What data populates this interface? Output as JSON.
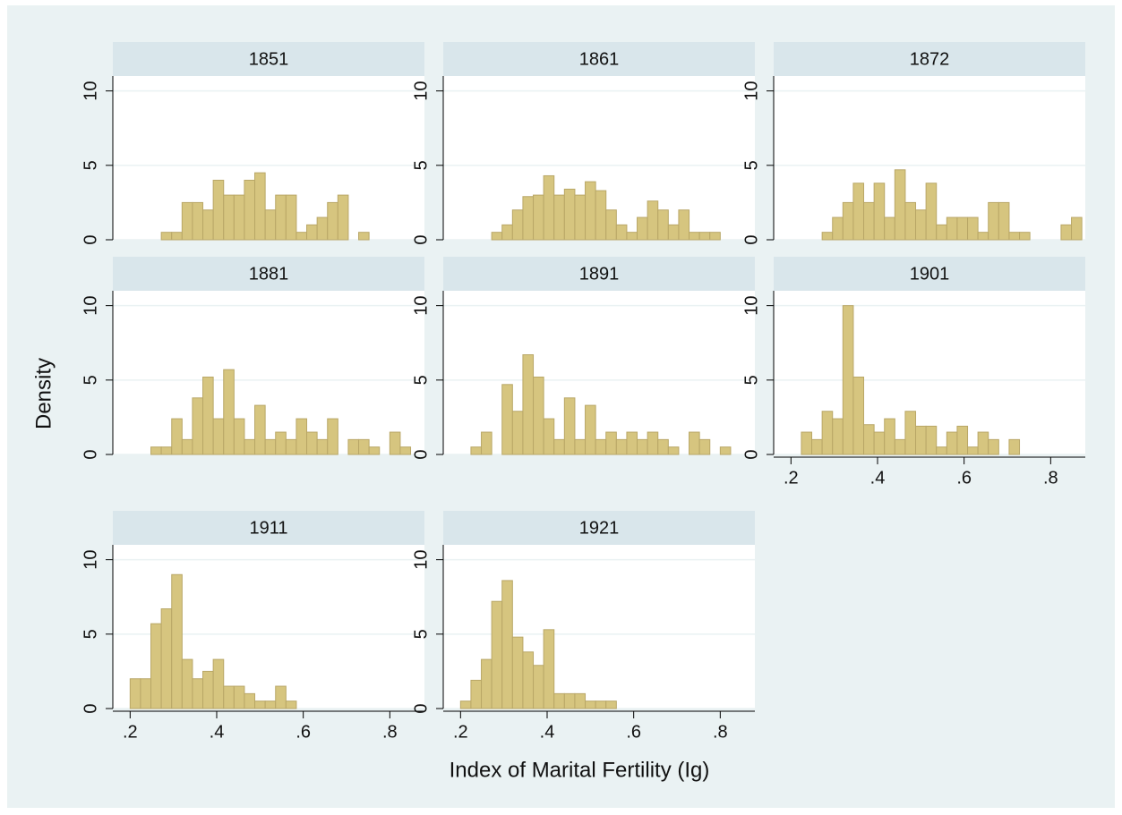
{
  "y_label": "Density",
  "x_label": "Index of Marital Fertility (Ig)",
  "chart_data": [
    {
      "type": "histogram",
      "title": "1851",
      "color": "#d6c57f",
      "xlim": [
        0.16,
        0.88
      ],
      "ylim": [
        0,
        11
      ],
      "yticks": [
        0,
        5,
        10
      ],
      "grid": true,
      "bins": [
        0.2,
        0.224,
        0.248,
        0.272,
        0.296,
        0.32,
        0.344,
        0.368,
        0.392,
        0.416,
        0.44,
        0.464,
        0.488,
        0.512,
        0.536,
        0.56,
        0.584,
        0.608,
        0.632,
        0.656,
        0.68,
        0.704,
        0.728,
        0.752,
        0.776,
        0.8,
        0.824,
        0.848,
        0.872
      ],
      "values": [
        0,
        0,
        0,
        0.5,
        0.5,
        2.5,
        2.5,
        2,
        4,
        3,
        3,
        4,
        4.5,
        2,
        3,
        3,
        0.5,
        1,
        1.5,
        2.5,
        3,
        0,
        0.5,
        0,
        0,
        0,
        0,
        0
      ]
    },
    {
      "type": "histogram",
      "title": "1861",
      "color": "#d6c57f",
      "xlim": [
        0.16,
        0.88
      ],
      "ylim": [
        0,
        11
      ],
      "yticks": [
        0,
        5,
        10
      ],
      "grid": true,
      "bins": [
        0.2,
        0.224,
        0.248,
        0.272,
        0.296,
        0.32,
        0.344,
        0.368,
        0.392,
        0.416,
        0.44,
        0.464,
        0.488,
        0.512,
        0.536,
        0.56,
        0.584,
        0.608,
        0.632,
        0.656,
        0.68,
        0.704,
        0.728,
        0.752,
        0.776,
        0.8,
        0.824,
        0.848,
        0.872
      ],
      "values": [
        0,
        0,
        0,
        0.5,
        1,
        2,
        2.9,
        3,
        4.3,
        3,
        3.4,
        3,
        3.9,
        3.3,
        2,
        1,
        0.5,
        1.5,
        2.6,
        2,
        1,
        2,
        0.5,
        0.5,
        0.5,
        0,
        0,
        0
      ]
    },
    {
      "type": "histogram",
      "title": "1872",
      "color": "#d6c57f",
      "xlim": [
        0.16,
        0.88
      ],
      "ylim": [
        0,
        11
      ],
      "yticks": [
        0,
        5,
        10
      ],
      "grid": true,
      "bins": [
        0.2,
        0.224,
        0.248,
        0.272,
        0.296,
        0.32,
        0.344,
        0.368,
        0.392,
        0.416,
        0.44,
        0.464,
        0.488,
        0.512,
        0.536,
        0.56,
        0.584,
        0.608,
        0.632,
        0.656,
        0.68,
        0.704,
        0.728,
        0.752,
        0.776,
        0.8,
        0.824,
        0.848,
        0.872
      ],
      "values": [
        0,
        0,
        0,
        0.5,
        1.5,
        2.5,
        3.8,
        2.5,
        3.8,
        1.5,
        4.7,
        2.5,
        2,
        3.8,
        1,
        1.5,
        1.5,
        1.5,
        0.5,
        2.5,
        2.5,
        0.5,
        0.5,
        0,
        0,
        0,
        1,
        1.5
      ]
    },
    {
      "type": "histogram",
      "title": "1881",
      "color": "#d6c57f",
      "xlim": [
        0.16,
        0.88
      ],
      "ylim": [
        0,
        11
      ],
      "yticks": [
        0,
        5,
        10
      ],
      "grid": true,
      "bins": [
        0.2,
        0.224,
        0.248,
        0.272,
        0.296,
        0.32,
        0.344,
        0.368,
        0.392,
        0.416,
        0.44,
        0.464,
        0.488,
        0.512,
        0.536,
        0.56,
        0.584,
        0.608,
        0.632,
        0.656,
        0.68,
        0.704,
        0.728,
        0.752,
        0.776,
        0.8,
        0.824,
        0.848,
        0.872
      ],
      "values": [
        0,
        0,
        0.5,
        0.5,
        2.4,
        1,
        3.8,
        5.2,
        2.4,
        5.7,
        2.4,
        1,
        3.3,
        1,
        1.5,
        1,
        2.4,
        1.5,
        1,
        2.4,
        0,
        1,
        1,
        0.5,
        0,
        1.5,
        0.5,
        0
      ]
    },
    {
      "type": "histogram",
      "title": "1891",
      "color": "#d6c57f",
      "xlim": [
        0.16,
        0.88
      ],
      "ylim": [
        0,
        11
      ],
      "yticks": [
        0,
        5,
        10
      ],
      "grid": true,
      "bins": [
        0.2,
        0.224,
        0.248,
        0.272,
        0.296,
        0.32,
        0.344,
        0.368,
        0.392,
        0.416,
        0.44,
        0.464,
        0.488,
        0.512,
        0.536,
        0.56,
        0.584,
        0.608,
        0.632,
        0.656,
        0.68,
        0.704,
        0.728,
        0.752,
        0.776,
        0.8,
        0.824,
        0.848,
        0.872
      ],
      "values": [
        0,
        0.5,
        1.5,
        0,
        4.7,
        2.9,
        6.7,
        5.2,
        2.4,
        1,
        3.8,
        1,
        3.3,
        1,
        1.5,
        1,
        1.5,
        1,
        1.5,
        1,
        0.5,
        0,
        1.5,
        1,
        0,
        0.5,
        0,
        0
      ]
    },
    {
      "type": "histogram",
      "title": "1901",
      "color": "#d6c57f",
      "xlim": [
        0.16,
        0.88
      ],
      "ylim": [
        0,
        11
      ],
      "yticks": [
        0,
        5,
        10
      ],
      "grid": true,
      "xticks": [
        {
          "value": 0.2,
          "label": ".2"
        },
        {
          "value": 0.4,
          "label": ".4"
        },
        {
          "value": 0.6,
          "label": ".6"
        },
        {
          "value": 0.8,
          "label": ".8"
        }
      ],
      "bins": [
        0.2,
        0.224,
        0.248,
        0.272,
        0.296,
        0.32,
        0.344,
        0.368,
        0.392,
        0.416,
        0.44,
        0.464,
        0.488,
        0.512,
        0.536,
        0.56,
        0.584,
        0.608,
        0.632,
        0.656,
        0.68,
        0.704,
        0.728,
        0.752,
        0.776,
        0.8,
        0.824,
        0.848,
        0.872
      ],
      "values": [
        0,
        1.5,
        1,
        2.9,
        2.4,
        10,
        5.2,
        2,
        1.5,
        2.4,
        1,
        2.9,
        1.9,
        1.9,
        0.5,
        1.5,
        1.9,
        0.5,
        1.5,
        1,
        0,
        1,
        0,
        0,
        0,
        0,
        0,
        0
      ]
    },
    {
      "type": "histogram",
      "title": "1911",
      "color": "#d6c57f",
      "xlim": [
        0.16,
        0.88
      ],
      "ylim": [
        0,
        11
      ],
      "yticks": [
        0,
        5,
        10
      ],
      "grid": true,
      "xticks": [
        {
          "value": 0.2,
          "label": ".2"
        },
        {
          "value": 0.4,
          "label": ".4"
        },
        {
          "value": 0.6,
          "label": ".6"
        },
        {
          "value": 0.8,
          "label": ".8"
        }
      ],
      "bins": [
        0.2,
        0.224,
        0.248,
        0.272,
        0.296,
        0.32,
        0.344,
        0.368,
        0.392,
        0.416,
        0.44,
        0.464,
        0.488,
        0.512,
        0.536,
        0.56,
        0.584,
        0.608,
        0.632,
        0.656,
        0.68,
        0.704,
        0.728,
        0.752,
        0.776,
        0.8,
        0.824,
        0.848,
        0.872
      ],
      "values": [
        2,
        2,
        5.7,
        6.7,
        9,
        3.3,
        2,
        2.5,
        3.3,
        1.5,
        1.5,
        1,
        0.5,
        0.5,
        1.5,
        0.5,
        0,
        0,
        0,
        0,
        0,
        0,
        0,
        0,
        0,
        0,
        0,
        0
      ]
    },
    {
      "type": "histogram",
      "title": "1921",
      "color": "#d6c57f",
      "xlim": [
        0.16,
        0.88
      ],
      "ylim": [
        0,
        11
      ],
      "yticks": [
        0,
        5,
        10
      ],
      "grid": true,
      "xticks": [
        {
          "value": 0.2,
          "label": ".2"
        },
        {
          "value": 0.4,
          "label": ".4"
        },
        {
          "value": 0.6,
          "label": ".6"
        },
        {
          "value": 0.8,
          "label": ".8"
        }
      ],
      "bins": [
        0.2,
        0.224,
        0.248,
        0.272,
        0.296,
        0.32,
        0.344,
        0.368,
        0.392,
        0.416,
        0.44,
        0.464,
        0.488,
        0.512,
        0.536,
        0.56,
        0.584,
        0.608,
        0.632,
        0.656,
        0.68,
        0.704,
        0.728,
        0.752,
        0.776,
        0.8,
        0.824,
        0.848,
        0.872
      ],
      "values": [
        0.5,
        1.9,
        3.3,
        7.2,
        8.6,
        4.8,
        3.8,
        2.9,
        5.3,
        1,
        1,
        1,
        0.5,
        0.5,
        0.5,
        0,
        0,
        0,
        0,
        0,
        0,
        0,
        0,
        0,
        0,
        0,
        0,
        0
      ]
    }
  ]
}
